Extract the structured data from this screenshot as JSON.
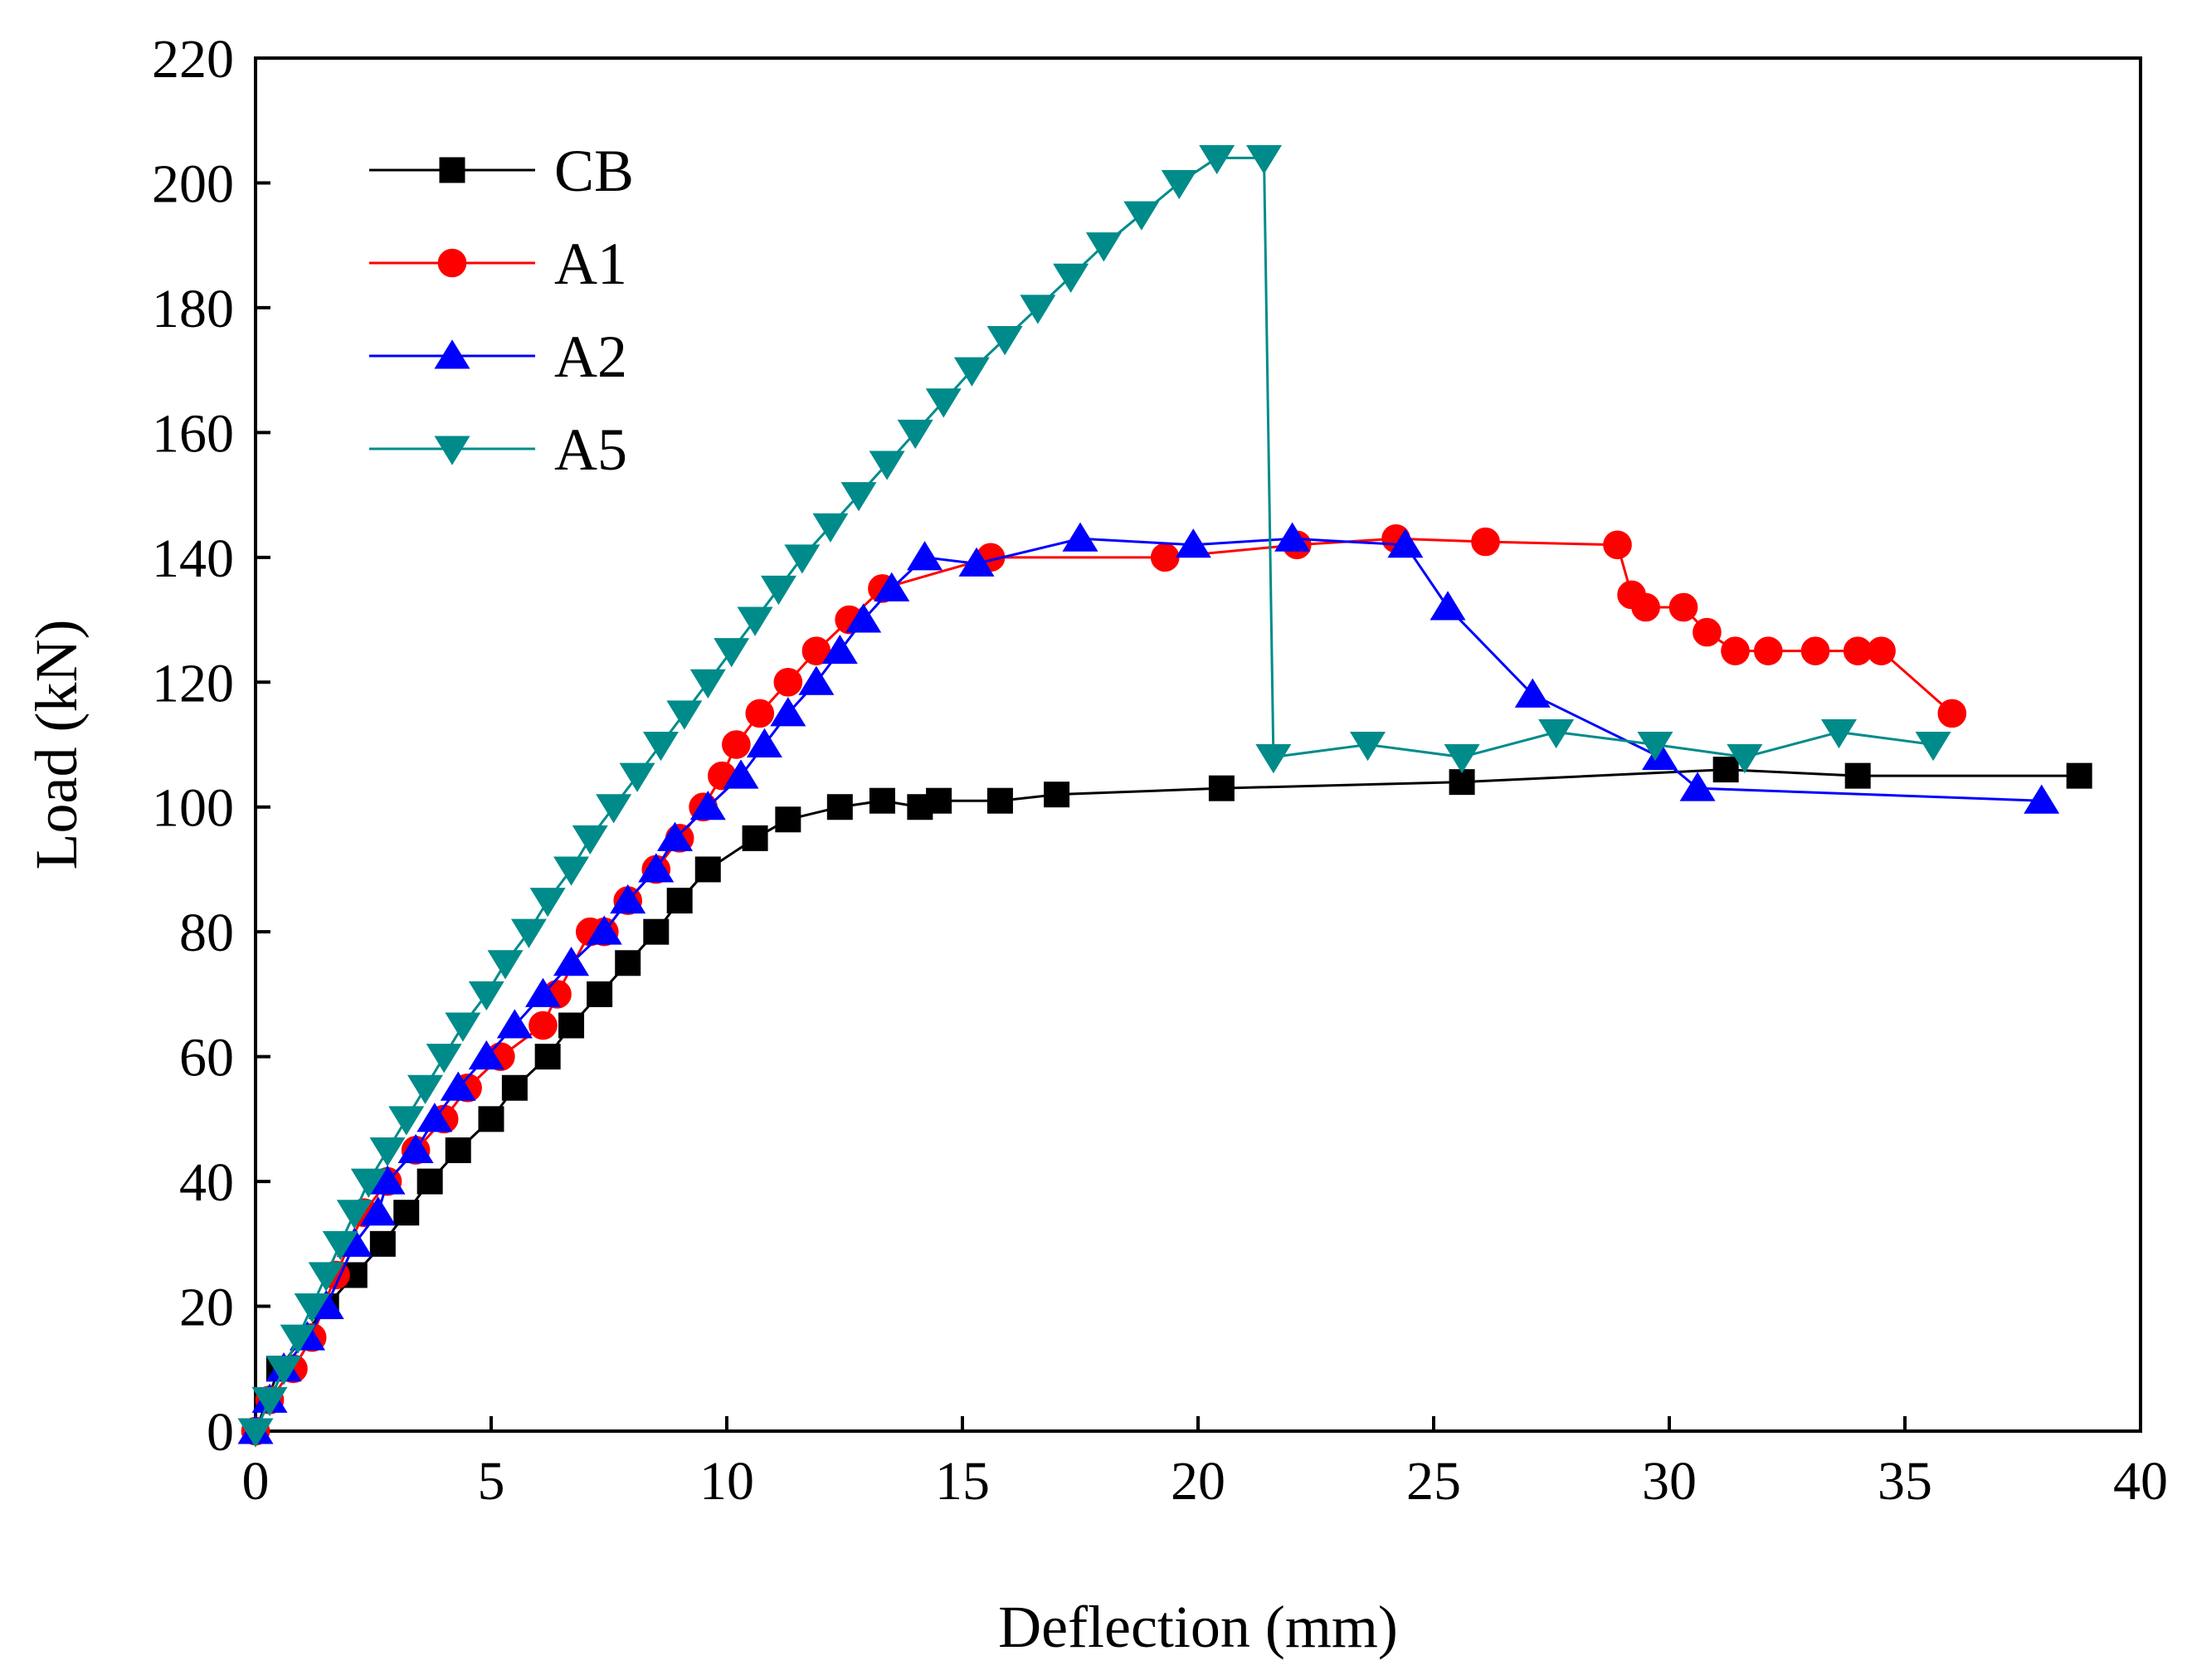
{
  "chart_data": {
    "type": "line",
    "title": "",
    "xlabel": "Deflection (mm)",
    "ylabel": "Load (kN)",
    "xlim": [
      0,
      40
    ],
    "ylim": [
      0,
      220
    ],
    "xticks": [
      0,
      5,
      10,
      15,
      20,
      25,
      30,
      35,
      40
    ],
    "yticks": [
      0,
      20,
      40,
      60,
      80,
      100,
      120,
      140,
      160,
      180,
      200,
      220
    ],
    "xtick_labels": [
      "0",
      "5",
      "10",
      "15",
      "20",
      "25",
      "30",
      "35",
      "40"
    ],
    "ytick_labels": [
      "0",
      "20",
      "40",
      "60",
      "80",
      "100",
      "120",
      "140",
      "160",
      "180",
      "200",
      "220"
    ],
    "grid": false,
    "legend_position": "top-left",
    "series": [
      {
        "name": "CB",
        "color": "#000000",
        "marker": "square",
        "x": [
          0,
          0.5,
          1.5,
          2.1,
          2.7,
          3.2,
          3.7,
          4.3,
          5.0,
          5.5,
          6.2,
          6.7,
          7.3,
          7.9,
          8.5,
          9.0,
          9.6,
          10.6,
          11.3,
          12.4,
          13.3,
          14.1,
          14.5,
          15.8,
          17.0,
          20.5,
          25.6,
          31.2,
          34.0,
          38.7
        ],
        "y": [
          0,
          10,
          20,
          25,
          30,
          35,
          40,
          45,
          50,
          55,
          60,
          65,
          70,
          75,
          80,
          85,
          90,
          95,
          98,
          100,
          101,
          100,
          101,
          101,
          102,
          103,
          104,
          106,
          105,
          105
        ]
      },
      {
        "name": "A1",
        "color": "#ff0000",
        "marker": "circle",
        "x": [
          0,
          0.3,
          0.8,
          1.2,
          1.7,
          2.3,
          2.8,
          3.4,
          4.0,
          4.5,
          5.2,
          6.1,
          6.4,
          7.1,
          7.4,
          7.9,
          8.5,
          9.0,
          9.5,
          9.9,
          10.2,
          10.7,
          11.3,
          11.9,
          12.6,
          13.3,
          15.6,
          19.3,
          22.1,
          24.2,
          26.1,
          28.9,
          29.2,
          29.5,
          30.3,
          30.8,
          31.4,
          32.1,
          33.1,
          34.0,
          34.5,
          36.0
        ],
        "y": [
          0,
          5,
          10,
          15,
          25,
          35,
          40,
          45,
          50,
          55,
          60,
          65,
          70,
          80,
          80,
          85,
          90,
          95,
          100,
          105,
          110,
          115,
          120,
          125,
          130,
          135,
          140,
          140,
          142,
          143,
          142.5,
          142,
          134,
          132,
          132,
          128,
          125,
          125,
          125,
          125,
          125,
          115
        ]
      },
      {
        "name": "A2",
        "color": "#0000ff",
        "marker": "triangle-up",
        "x": [
          0,
          0.3,
          0.6,
          1.1,
          1.5,
          2.1,
          2.6,
          2.8,
          3.4,
          3.8,
          4.3,
          4.9,
          5.5,
          6.1,
          6.7,
          7.4,
          7.9,
          8.5,
          8.9,
          9.6,
          10.3,
          10.8,
          11.3,
          11.9,
          12.4,
          12.9,
          13.5,
          14.2,
          15.3,
          17.5,
          19.9,
          22.0,
          24.4,
          25.3,
          27.1,
          29.8,
          30.6,
          37.9
        ],
        "y": [
          0,
          5,
          10,
          15,
          20,
          30,
          35,
          40,
          45,
          50,
          55,
          60,
          65,
          70,
          75,
          80,
          85,
          90,
          95,
          100,
          105,
          110,
          115,
          120,
          125,
          130,
          135,
          140,
          139,
          143,
          142,
          143,
          142,
          132,
          118,
          108,
          103,
          101
        ]
      },
      {
        "name": "A5",
        "color": "#008b8b",
        "marker": "triangle-down",
        "x": [
          0,
          0.3,
          0.6,
          0.9,
          1.2,
          1.5,
          1.8,
          2.1,
          2.4,
          2.8,
          3.2,
          3.6,
          4.0,
          4.4,
          4.9,
          5.3,
          5.8,
          6.2,
          6.7,
          7.1,
          7.6,
          8.1,
          8.6,
          9.1,
          9.6,
          10.1,
          10.6,
          11.1,
          11.6,
          12.2,
          12.8,
          13.4,
          14.0,
          14.6,
          15.2,
          15.9,
          16.6,
          17.3,
          18.0,
          18.8,
          19.6,
          20.4,
          21.4,
          21.6,
          23.6,
          25.6,
          27.6,
          29.7,
          31.6,
          33.6,
          35.6
        ],
        "y": [
          0,
          5,
          10,
          15,
          20,
          25,
          30,
          35,
          40,
          45,
          50,
          55,
          60,
          65,
          70,
          75,
          80,
          85,
          90,
          95,
          100,
          105,
          110,
          115,
          120,
          125,
          130,
          135,
          140,
          145,
          150,
          155,
          160,
          165,
          170,
          175,
          180,
          185,
          190,
          195,
          200,
          204,
          204,
          108,
          110,
          108,
          112,
          110,
          108,
          112,
          110
        ]
      }
    ]
  }
}
